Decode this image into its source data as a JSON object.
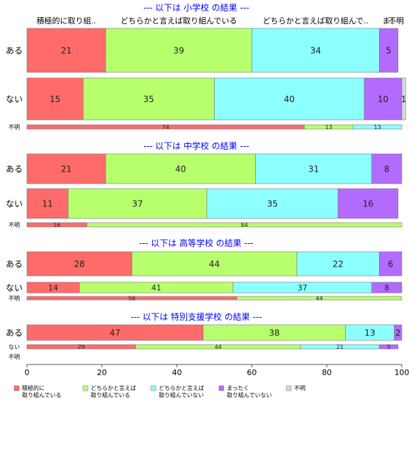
{
  "chart_data": {
    "type": "bar",
    "orientation": "horizontal",
    "stacked": true,
    "x_range": [
      0,
      100
    ],
    "x_ticks": [
      0,
      20,
      40,
      60,
      80,
      100
    ],
    "category_colors": [
      "#ff6b6b",
      "#b8ff6e",
      "#8cffff",
      "#b36bff",
      "#d9d9d9"
    ],
    "column_headers": [
      "積極的に取り組..",
      "どちらかと言えば取り組んでいる",
      "どちらかと言えば取り組んで..",
      "ま..",
      "不明"
    ],
    "legend": [
      {
        "line1": "積極的に",
        "line2": "取り組んでいる"
      },
      {
        "line1": "どちらかと言えば",
        "line2": "取り組んでいる"
      },
      {
        "line1": "どちらかと言えば",
        "line2": "取り組んでいない"
      },
      {
        "line1": "まったく",
        "line2": "取り組んでいない"
      },
      {
        "line1": "不明",
        "line2": ""
      }
    ],
    "panels": [
      {
        "title": "--- 以下は 小学校 の結果 ---",
        "rows": [
          {
            "label": "ある",
            "values": [
              21,
              39,
              34,
              5,
              0
            ]
          },
          {
            "label": "ない",
            "values": [
              15,
              35,
              40,
              10,
              1
            ]
          },
          {
            "label": "不明",
            "values": [
              74,
              13,
              13,
              0,
              0
            ]
          }
        ]
      },
      {
        "title": "--- 以下は 中学校 の結果 ---",
        "rows": [
          {
            "label": "ある",
            "values": [
              21,
              40,
              31,
              8,
              0
            ]
          },
          {
            "label": "ない",
            "values": [
              11,
              37,
              35,
              16,
              0
            ]
          },
          {
            "label": "不明",
            "values": [
              16,
              84,
              0,
              0,
              0
            ]
          }
        ]
      },
      {
        "title": "--- 以下は 高等学校 の結果 ---",
        "rows": [
          {
            "label": "ある",
            "values": [
              28,
              44,
              22,
              6,
              0
            ]
          },
          {
            "label": "ない",
            "values": [
              14,
              41,
              37,
              8,
              0
            ]
          },
          {
            "label": "不明",
            "values": [
              56,
              44,
              0,
              0,
              0
            ]
          }
        ]
      },
      {
        "title": "--- 以下は 特別支援学校 の結果 ---",
        "rows": [
          {
            "label": "ある",
            "values": [
              47,
              38,
              13,
              2,
              0
            ]
          },
          {
            "label": "ない",
            "values": [
              29,
              44,
              21,
              5,
              0
            ]
          },
          {
            "label": "不明",
            "values": []
          }
        ]
      }
    ]
  }
}
